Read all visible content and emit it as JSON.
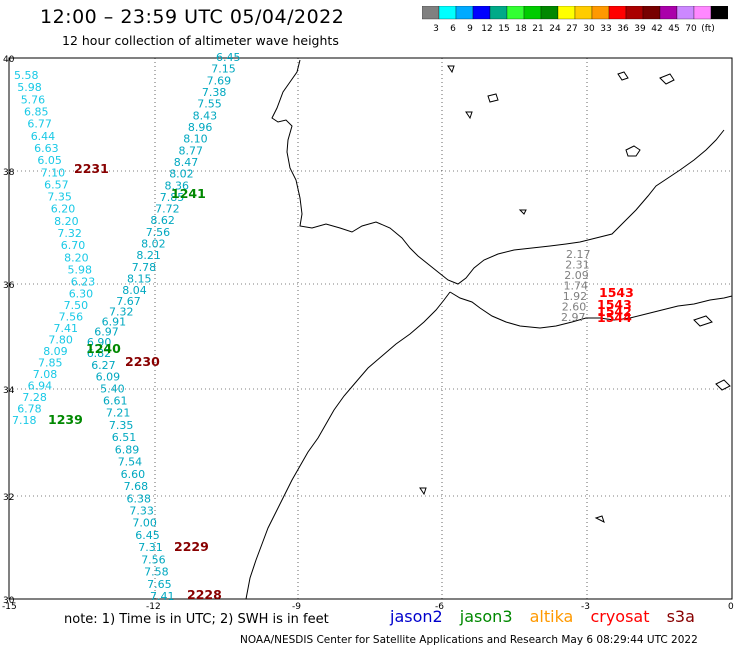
{
  "title": "12:00 – 23:59 UTC 05/04/2022",
  "subtitle": "12 hour collection of altimeter wave heights",
  "legend": {
    "colors": [
      "#808080",
      "#00ffff",
      "#00aaff",
      "#0000ff",
      "#00aa88",
      "#33ff33",
      "#00cc00",
      "#008800",
      "#ffff00",
      "#ffcc00",
      "#ff9900",
      "#ff0000",
      "#aa0000",
      "#770000",
      "#aa00aa",
      "#cc88ff",
      "#ff88ff",
      "#000000"
    ],
    "labels": [
      "3",
      "6",
      "9",
      "12",
      "15",
      "18",
      "21",
      "24",
      "27",
      "30",
      "33",
      "36",
      "39",
      "42",
      "45",
      "70",
      "(ft)"
    ]
  },
  "axes": {
    "lat_labels": [
      "40",
      "38",
      "36",
      "34",
      "32",
      "30"
    ],
    "lon_labels": [
      "-15",
      "-12",
      "-9",
      "-6",
      "-3",
      "0"
    ]
  },
  "tracks": {
    "track_a": [
      "6.45",
      "7.15",
      "7.69",
      "7.38",
      "7.55",
      "8.43",
      "8.96",
      "8.10",
      "8.77",
      "8.47",
      "8.02",
      "8.36",
      "7.85",
      "7.72",
      "8.62",
      "7.56",
      "8.02",
      "8.21",
      "7.78",
      "8.15",
      "8.04",
      "7.67",
      "7.32",
      "6.91",
      "6.97",
      "6.90",
      "6.82",
      "6.27",
      "6.09",
      "5.40",
      "6.61",
      "7.21",
      "7.35",
      "6.51",
      "6.89",
      "7.54",
      "6.60",
      "7.68",
      "6.38",
      "7.33",
      "7.00",
      "6.45",
      "7.31",
      "7.56",
      "7.58",
      "7.65",
      "7.41"
    ],
    "track_b": [
      "5.58",
      "5.98",
      "5.76",
      "6.85",
      "6.77",
      "6.44",
      "6.63",
      "6.05",
      "7.10",
      "6.57",
      "7.35",
      "6.20",
      "8.20",
      "7.32",
      "6.70",
      "8.20",
      "5.98",
      "6.23",
      "6.30",
      "7.50",
      "7.56",
      "7.41",
      "7.80",
      "8.09",
      "7.85",
      "7.08",
      "6.94",
      "7.28",
      "6.78",
      "7.18"
    ],
    "gray_values": [
      "2.17",
      "2.31",
      "2.09",
      "1.74",
      "1.92",
      "2.60",
      "2.97"
    ]
  },
  "pass_labels": {
    "p2231": "2231",
    "p1241": "1241",
    "p1240": "1240",
    "p2230": "2230",
    "p1239": "1239",
    "p2229": "2229",
    "p2228": "2228",
    "p1543a": "1543",
    "p1543b": "1543",
    "p1542": "1542",
    "p1544": "1544"
  },
  "footer": {
    "note": "note:  1) Time is in UTC;  2) SWH is in feet",
    "satellites": [
      {
        "name": "jason2",
        "color": "#0000cc"
      },
      {
        "name": "jason3",
        "color": "#008800"
      },
      {
        "name": "altika",
        "color": "#ff9900"
      },
      {
        "name": "cryosat",
        "color": "#ff0000"
      },
      {
        "name": "s3a",
        "color": "#880000"
      }
    ],
    "credit": "NOAA/NESDIS Center for Satellite Applications and Research    May  6 08:29:44 UTC 2022"
  }
}
